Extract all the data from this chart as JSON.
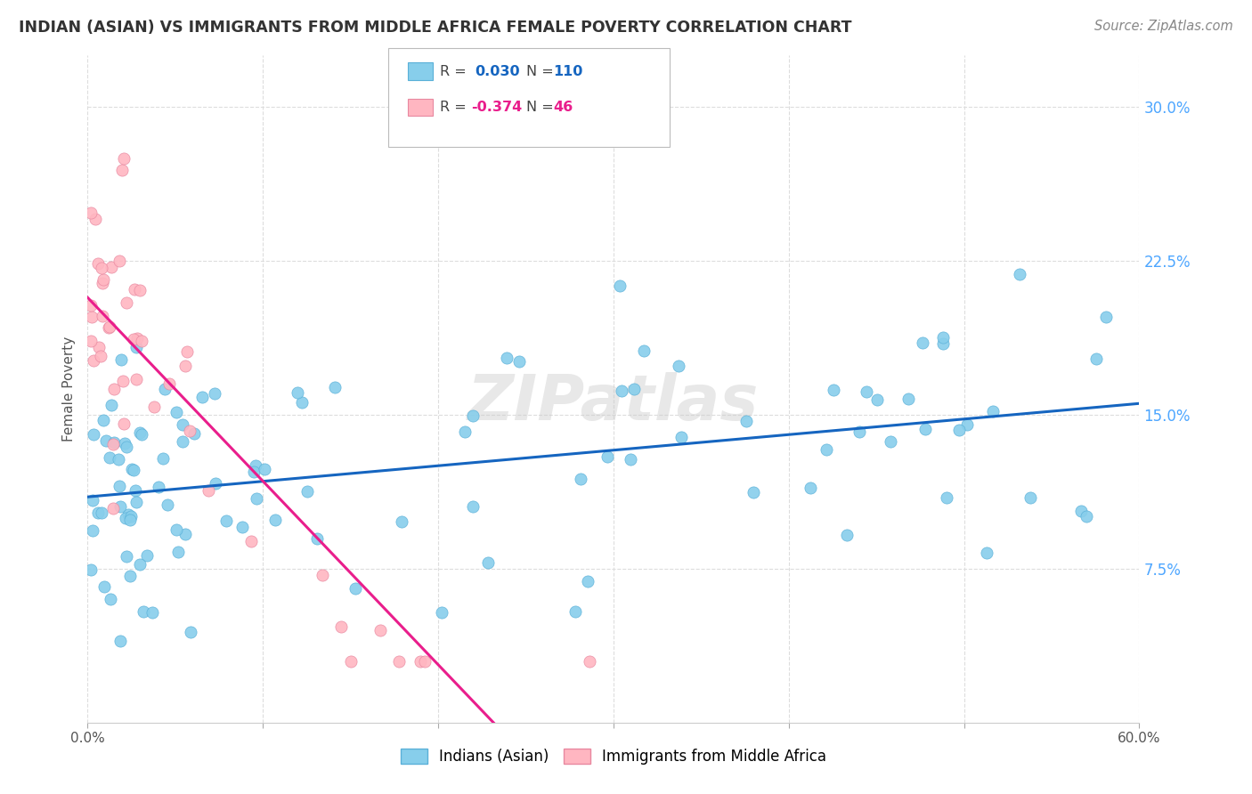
{
  "title": "INDIAN (ASIAN) VS IMMIGRANTS FROM MIDDLE AFRICA FEMALE POVERTY CORRELATION CHART",
  "source": "Source: ZipAtlas.com",
  "ylabel": "Female Poverty",
  "ytick_values": [
    0.075,
    0.15,
    0.225,
    0.3
  ],
  "ytick_labels": [
    "7.5%",
    "15.0%",
    "22.5%",
    "30.0%"
  ],
  "xlim": [
    0.0,
    0.6
  ],
  "ylim": [
    0.0,
    0.325
  ],
  "color_blue_scatter": "#87CEEB",
  "color_blue_edge": "#5ab0d8",
  "color_pink_scatter": "#FFB6C1",
  "color_pink_edge": "#e888a0",
  "color_line_blue": "#1565C0",
  "color_line_pink_solid": "#E91E8C",
  "color_line_pink_dashed": "#e0a0b0",
  "background_color": "#ffffff",
  "grid_color": "#dddddd",
  "title_color": "#333333",
  "source_color": "#888888",
  "tick_color_right": "#4da6ff",
  "watermark": "ZIPatlas",
  "legend_label1": "Indians (Asian)",
  "legend_label2": "Immigrants from Middle Africa",
  "r1": "0.030",
  "n1": "110",
  "r2": "-0.374",
  "n2": "46"
}
